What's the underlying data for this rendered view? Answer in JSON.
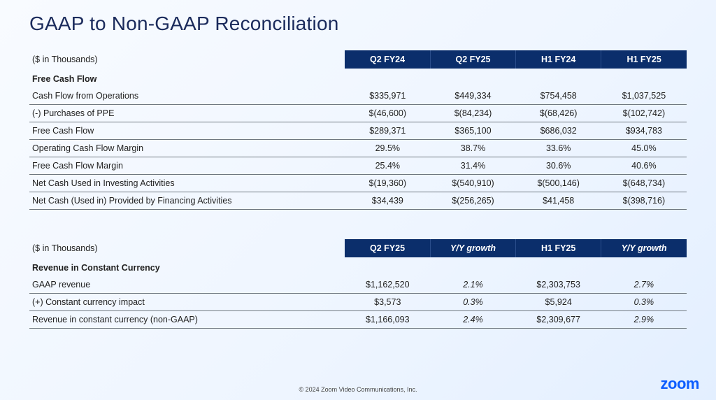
{
  "title": "GAAP to Non-GAAP Reconciliation",
  "units_label": "($ in Thousands)",
  "colors": {
    "header_bg": "#0b2e6b",
    "header_text": "#ffffff",
    "title_text": "#1b2b5c",
    "row_border": "#6f7880",
    "body_text": "#222222",
    "logo": "#0b5cff",
    "bg_gradient_start": "#f8fbff",
    "bg_gradient_end": "#e3efff"
  },
  "typography": {
    "title_fontsize_pt": 21,
    "body_fontsize_pt": 9.5,
    "header_fontsize_pt": 9.5
  },
  "table1": {
    "columns": [
      "Q2 FY24",
      "Q2 FY25",
      "H1 FY24",
      "H1 FY25"
    ],
    "section_label": "Free Cash Flow",
    "rows": [
      {
        "label": "Cash Flow from Operations",
        "vals": [
          "$335,971",
          "$449,334",
          "$754,458",
          "$1,037,525"
        ]
      },
      {
        "label": "(-) Purchases of PPE",
        "vals": [
          "$(46,600)",
          "$(84,234)",
          "$(68,426)",
          "$(102,742)"
        ]
      },
      {
        "label": "Free Cash Flow",
        "vals": [
          "$289,371",
          "$365,100",
          "$686,032",
          "$934,783"
        ]
      },
      {
        "label": "Operating Cash Flow Margin",
        "vals": [
          "29.5%",
          "38.7%",
          "33.6%",
          "45.0%"
        ]
      },
      {
        "label": "Free Cash Flow Margin",
        "vals": [
          "25.4%",
          "31.4%",
          "30.6%",
          "40.6%"
        ]
      },
      {
        "label": "Net Cash Used in Investing Activities",
        "vals": [
          "$(19,360)",
          "$(540,910)",
          "$(500,146)",
          "$(648,734)"
        ]
      },
      {
        "label": "Net Cash (Used in) Provided by Financing Activities",
        "vals": [
          "$34,439",
          "$(256,265)",
          "$41,458",
          "$(398,716)"
        ]
      }
    ]
  },
  "table2": {
    "columns": [
      "Q2 FY25",
      "Y/Y growth",
      "H1 FY25",
      "Y/Y growth"
    ],
    "columns_italic": [
      false,
      true,
      false,
      true
    ],
    "section_label": "Revenue in Constant Currency",
    "rows": [
      {
        "label": "GAAP revenue",
        "vals": [
          "$1,162,520",
          "2.1%",
          "$2,303,753",
          "2.7%"
        ],
        "italic": [
          false,
          true,
          false,
          true
        ]
      },
      {
        "label": "(+) Constant currency impact",
        "vals": [
          "$3,573",
          "0.3%",
          "$5,924",
          "0.3%"
        ],
        "italic": [
          false,
          true,
          false,
          true
        ]
      },
      {
        "label": "Revenue in constant currency (non-GAAP)",
        "vals": [
          "$1,166,093",
          "2.4%",
          "$2,309,677",
          "2.9%"
        ],
        "italic": [
          false,
          true,
          false,
          true
        ]
      }
    ]
  },
  "footer": "© 2024 Zoom Video Communications, Inc.",
  "logo_text": "zoom"
}
